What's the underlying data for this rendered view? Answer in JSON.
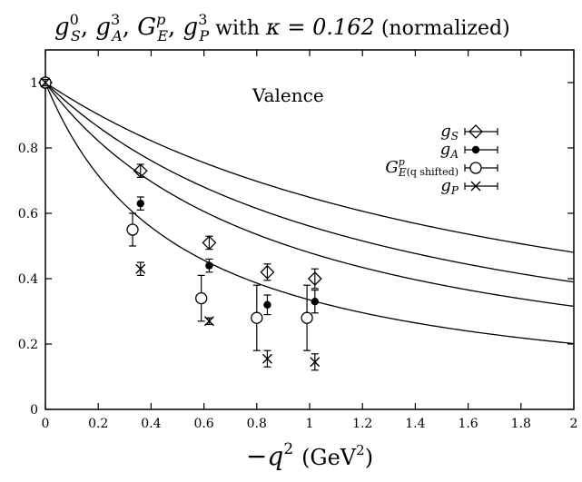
{
  "chart_data": {
    "type": "scatter",
    "title": "g_S^0, g_A^3, G_E^p, g_P^3 with κ = 0.162 (normalized)",
    "title_parts": {
      "t1": "g",
      "t1sup": "0",
      "t1sub": "S",
      "t2": "g",
      "t2sup": "3",
      "t2sub": "A",
      "t3": "G",
      "t3sup": "p",
      "t3sub": "E",
      "t4": "g",
      "t4sup": "3",
      "t4sub": "P",
      "with": "with",
      "kappa": "κ = 0.162",
      "norm": "(normalized)"
    },
    "annotation": "Valence",
    "xlabel": "−q² (GeV²)",
    "xlabel_parts": {
      "minus": "−",
      "q": "q",
      "sup": "2",
      "unit": "(GeV",
      "unitsup": "2",
      "close": ")"
    },
    "xlim": [
      0,
      2
    ],
    "ylim": [
      0,
      1.1
    ],
    "xticks": [
      0,
      0.2,
      0.4,
      0.6,
      0.8,
      1,
      1.2,
      1.4,
      1.6,
      1.8,
      2
    ],
    "xtick_labels": [
      "0",
      "0.2",
      "0.4",
      "0.6",
      "0.8",
      "1",
      "1.2",
      "1.4",
      "1.6",
      "1.8",
      "2"
    ],
    "yticks": [
      0,
      0.2,
      0.4,
      0.6,
      0.8,
      1
    ],
    "ytick_labels": [
      "0",
      "0.2",
      "0.4",
      "0.6",
      "0.8",
      "1"
    ],
    "legend_position": "top-right",
    "series": [
      {
        "name": "g_S",
        "legend": {
          "base": "g",
          "sub": "S",
          "extra": ""
        },
        "marker": "diamond",
        "points": [
          {
            "x": 0,
            "y": 1.0,
            "err": 0.01
          },
          {
            "x": 0.36,
            "y": 0.73,
            "err": 0.02
          },
          {
            "x": 0.62,
            "y": 0.51,
            "err": 0.02
          },
          {
            "x": 0.84,
            "y": 0.42,
            "err": 0.025
          },
          {
            "x": 1.02,
            "y": 0.4,
            "err": 0.03
          }
        ],
        "fit_mass": 1.36
      },
      {
        "name": "g_A",
        "legend": {
          "base": "g",
          "sub": "A",
          "extra": ""
        },
        "marker": "filled-circle",
        "points": [
          {
            "x": 0,
            "y": 1.0,
            "err": 0.01
          },
          {
            "x": 0.36,
            "y": 0.63,
            "err": 0.02
          },
          {
            "x": 0.62,
            "y": 0.44,
            "err": 0.02
          },
          {
            "x": 0.84,
            "y": 0.32,
            "err": 0.03
          },
          {
            "x": 1.02,
            "y": 0.33,
            "err": 0.035
          }
        ],
        "fit_mass": 1.13
      },
      {
        "name": "G_E (q shifted)",
        "legend": {
          "base": "G",
          "sub": "E",
          "sup": "p",
          "extra": "(q shifted)"
        },
        "marker": "open-circle",
        "points": [
          {
            "x": 0,
            "y": 1.0,
            "err": 0.01
          },
          {
            "x": 0.33,
            "y": 0.55,
            "err": 0.05
          },
          {
            "x": 0.59,
            "y": 0.34,
            "err": 0.07
          },
          {
            "x": 0.8,
            "y": 0.28,
            "err": 0.1
          },
          {
            "x": 0.99,
            "y": 0.28,
            "err": 0.1
          }
        ],
        "fit_mass": 0.96
      },
      {
        "name": "g_P",
        "legend": {
          "base": "g",
          "sub": "P",
          "extra": ""
        },
        "marker": "cross",
        "points": [
          {
            "x": 0,
            "y": 1.0,
            "err": 0.01
          },
          {
            "x": 0.36,
            "y": 0.43,
            "err": 0.02
          },
          {
            "x": 0.62,
            "y": 0.27,
            "err": 0.01
          },
          {
            "x": 0.84,
            "y": 0.155,
            "err": 0.025
          },
          {
            "x": 1.02,
            "y": 0.145,
            "err": 0.025
          }
        ],
        "fit_mass": 0.71
      }
    ]
  }
}
